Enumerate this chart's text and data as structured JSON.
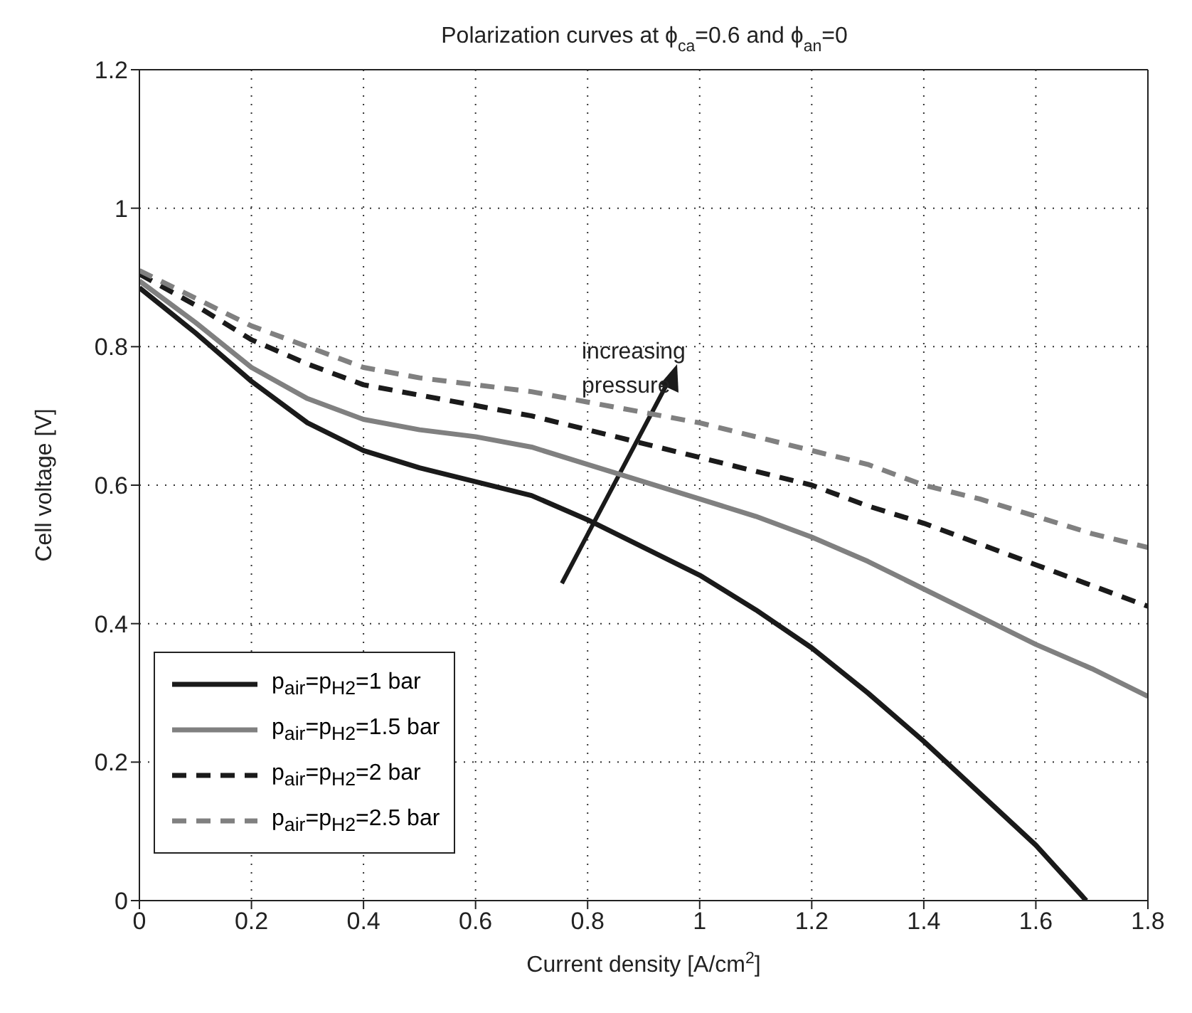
{
  "chart_data": {
    "type": "line",
    "title": "Polarization curves at ϕ$_{ca}$=0.6 and ϕ$_{an}$=0",
    "xlabel": "Current density [A/cm$^{2}$]",
    "ylabel": "Cell voltage [V]",
    "x": [
      0,
      0.1,
      0.2,
      0.3,
      0.4,
      0.5,
      0.6,
      0.7,
      0.8,
      0.9,
      1.0,
      1.1,
      1.2,
      1.3,
      1.4,
      1.5,
      1.6,
      1.7,
      1.8
    ],
    "series": [
      {
        "name": "p$_{air}$=p$_{H2}$=1 bar",
        "color": "#1a1a1a",
        "line_style": "solid",
        "x": [
          0,
          0.1,
          0.2,
          0.3,
          0.4,
          0.5,
          0.6,
          0.7,
          0.8,
          0.9,
          1.0,
          1.1,
          1.2,
          1.3,
          1.4,
          1.5,
          1.6,
          1.69
        ],
        "values": [
          0.885,
          0.82,
          0.75,
          0.69,
          0.65,
          0.625,
          0.605,
          0.585,
          0.55,
          0.51,
          0.47,
          0.42,
          0.365,
          0.3,
          0.23,
          0.155,
          0.08,
          0
        ]
      },
      {
        "name": "p$_{air}$=p$_{H2}$=1.5 bar",
        "color": "#808080",
        "line_style": "solid",
        "values": [
          0.895,
          0.835,
          0.77,
          0.725,
          0.695,
          0.68,
          0.67,
          0.655,
          0.63,
          0.605,
          0.58,
          0.555,
          0.525,
          0.49,
          0.45,
          0.41,
          0.37,
          0.335,
          0.295
        ]
      },
      {
        "name": "p$_{air}$=p$_{H2}$=2 bar",
        "color": "#1a1a1a",
        "line_style": "dashed",
        "values": [
          0.905,
          0.86,
          0.81,
          0.775,
          0.745,
          0.73,
          0.715,
          0.7,
          0.68,
          0.66,
          0.64,
          0.62,
          0.6,
          0.57,
          0.545,
          0.515,
          0.485,
          0.455,
          0.425
        ]
      },
      {
        "name": "p$_{air}$=p$_{H2}$=2.5 bar",
        "color": "#808080",
        "line_style": "dashed",
        "values": [
          0.91,
          0.87,
          0.83,
          0.8,
          0.77,
          0.755,
          0.745,
          0.735,
          0.72,
          0.705,
          0.69,
          0.67,
          0.65,
          0.63,
          0.6,
          0.58,
          0.555,
          0.53,
          0.51
        ]
      }
    ],
    "annotations": [
      "increasing pressure"
    ],
    "xlim": [
      0,
      1.8
    ],
    "xticks": [
      0,
      0.2,
      0.4,
      0.6,
      0.8,
      1,
      1.2,
      1.4,
      1.6,
      1.8
    ],
    "ylim": [
      0,
      1.2
    ],
    "yticks": [
      0,
      0.2,
      0.4,
      0.6,
      0.8,
      1,
      1.2
    ],
    "grid": true,
    "legend": "bottom left",
    "marker": "none"
  }
}
